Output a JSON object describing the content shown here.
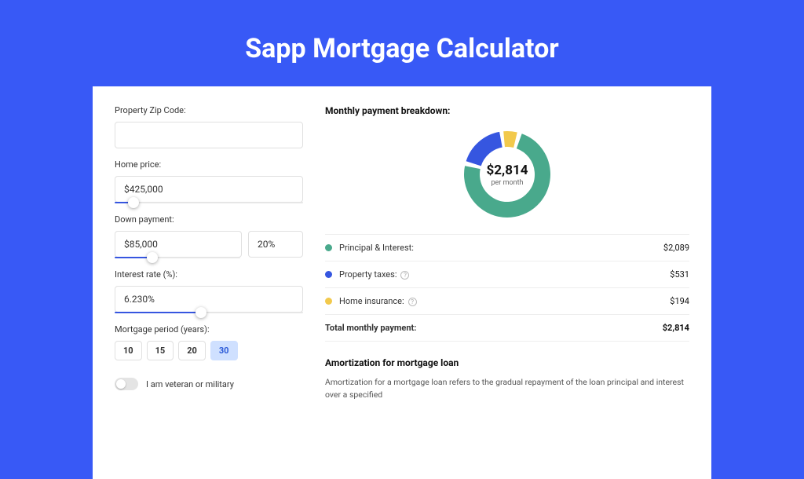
{
  "title": "Sapp Mortgage Calculator",
  "colors": {
    "page_bg": "#3859f6",
    "card_bg": "#ffffff",
    "principal": "#49a98c",
    "taxes": "#3656e0",
    "insurance": "#f2c94c",
    "border": "#e0e0e0",
    "slider_track": "#3656e0"
  },
  "form": {
    "zip": {
      "label": "Property Zip Code:",
      "value": ""
    },
    "home_price": {
      "label": "Home price:",
      "value": "$425,000",
      "slider_pct": 10
    },
    "down_payment": {
      "label": "Down payment:",
      "amount": "$85,000",
      "percent": "20%",
      "slider_pct": 30
    },
    "interest": {
      "label": "Interest rate (%):",
      "value": "6.230%",
      "slider_pct": 46
    },
    "period": {
      "label": "Mortgage period (years):",
      "options": [
        "10",
        "15",
        "20",
        "30"
      ],
      "active": "30"
    },
    "veteran": {
      "label": "I am veteran or military",
      "on": false
    }
  },
  "breakdown": {
    "title": "Monthly payment breakdown:",
    "center_amount": "$2,814",
    "center_sub": "per month",
    "items": [
      {
        "label": "Principal & Interest:",
        "value": "$2,089",
        "color": "#49a98c",
        "info": false,
        "share": 0.743
      },
      {
        "label": "Property taxes:",
        "value": "$531",
        "color": "#3656e0",
        "info": true,
        "share": 0.189
      },
      {
        "label": "Home insurance:",
        "value": "$194",
        "color": "#f2c94c",
        "info": true,
        "share": 0.069
      }
    ],
    "total": {
      "label": "Total monthly payment:",
      "value": "$2,814"
    }
  },
  "donut": {
    "size": 120,
    "r": 45,
    "stroke": 20,
    "circumference": 282.74,
    "gap": 5,
    "segments": [
      {
        "color": "#f2c94c",
        "start": 0,
        "len": 14.49
      },
      {
        "color": "#49a98c",
        "start": 19.49,
        "len": 205.08
      },
      {
        "color": "#3656e0",
        "start": 229.57,
        "len": 48.44
      }
    ]
  },
  "amortization": {
    "title": "Amortization for mortgage loan",
    "body": "Amortization for a mortgage loan refers to the gradual repayment of the loan principal and interest over a specified"
  }
}
